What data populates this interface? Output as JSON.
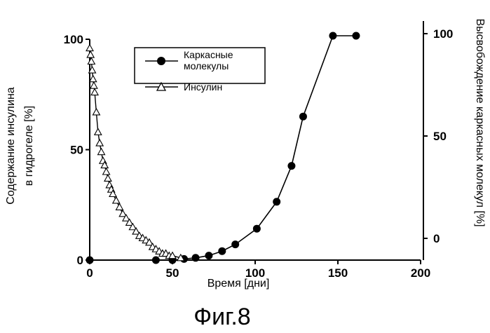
{
  "chart_data": {
    "type": "line",
    "x_label": "Время [дни]",
    "y_left_label_lines": [
      "Содержание инсулина",
      "в гидрогеле [%]"
    ],
    "y_right_label": "Высвобождение каркасных молекул [%]",
    "xlim": [
      0,
      200
    ],
    "ylim": [
      0,
      100
    ],
    "x_ticks": [
      0,
      50,
      100,
      150,
      200
    ],
    "y_left_ticks": [
      0,
      50,
      100
    ],
    "y_right_ticks": [
      0,
      50,
      100
    ],
    "grid": false,
    "legend_position": "top-center",
    "series": [
      {
        "name": "Каркасные молекулы",
        "marker": "filled-circle",
        "axis": "right",
        "x": [
          0,
          40,
          50,
          57,
          64,
          72,
          80,
          88,
          101,
          113,
          122,
          129,
          147,
          161
        ],
        "y": [
          0,
          0,
          0,
          0.5,
          1,
          2,
          4,
          7,
          14,
          26,
          42,
          64,
          100,
          100
        ]
      },
      {
        "name": "Инсулин",
        "marker": "open-triangle",
        "axis": "left",
        "x": [
          0,
          0.5,
          1,
          1.5,
          2,
          2.5,
          3,
          4,
          5,
          6,
          7,
          8,
          9,
          10,
          11,
          12,
          13,
          14,
          16,
          18,
          20,
          22,
          24,
          26,
          28,
          30,
          32,
          34,
          36,
          38,
          40,
          42,
          44,
          46,
          48,
          50,
          55
        ],
        "y": [
          96,
          93,
          90,
          86,
          82,
          79,
          76,
          67,
          58,
          53,
          49,
          45,
          43,
          40,
          37,
          34,
          32,
          30,
          27,
          24,
          21,
          19,
          17,
          15,
          13,
          11,
          10,
          9,
          8,
          6,
          5,
          4,
          3,
          3,
          2,
          2,
          1
        ]
      }
    ],
    "caption": "Фиг.8"
  }
}
